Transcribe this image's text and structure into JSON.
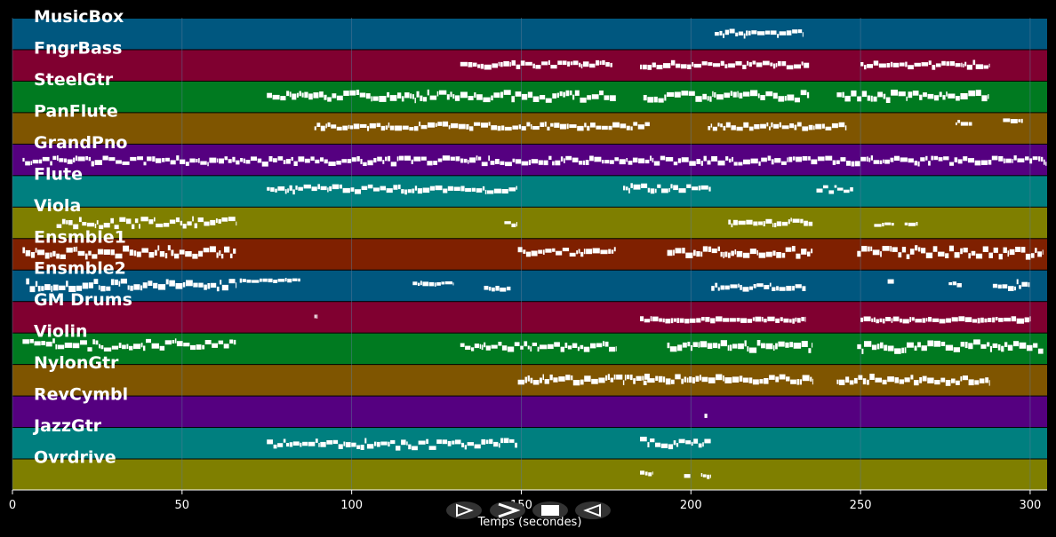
{
  "chart_data": {
    "type": "piano-roll",
    "xlabel": "Temps (secondes)",
    "xlim": [
      0,
      305
    ],
    "xticks": [
      0,
      50,
      100,
      150,
      200,
      250,
      300
    ],
    "tick_labels": [
      "0",
      "50",
      "100",
      "150",
      "200",
      "250",
      "300"
    ],
    "colors": {
      "blue": "#00577f",
      "crimson": "#800030",
      "green": "#007a20",
      "ochre": "#7f5500",
      "purple": "#550080",
      "teal": "#007f7f",
      "olive": "#7f7f00",
      "rust": "#7f2000",
      "note": "#ffffff",
      "grid": "#5a7a96"
    },
    "tracks": [
      {
        "name": "MusicBox",
        "color": "blue",
        "notes": [
          [
            207,
            233,
            0.5,
            0.18,
            1
          ]
        ]
      },
      {
        "name": "FngrBass",
        "color": "crimson",
        "notes": [
          [
            132,
            177,
            0.5,
            0.16,
            1
          ],
          [
            185,
            235,
            0.5,
            0.16,
            1
          ],
          [
            250,
            288,
            0.5,
            0.16,
            1
          ]
        ]
      },
      {
        "name": "SteelGtr",
        "color": "green",
        "notes": [
          [
            75,
            178,
            0.5,
            0.26,
            2
          ],
          [
            186,
            235,
            0.5,
            0.26,
            2
          ],
          [
            243,
            288,
            0.5,
            0.26,
            2
          ]
        ]
      },
      {
        "name": "PanFlute",
        "color": "ochre",
        "notes": [
          [
            89,
            188,
            0.45,
            0.16,
            1
          ],
          [
            205,
            246,
            0.45,
            0.16,
            1
          ],
          [
            278,
            283,
            0.35,
            0.14,
            0
          ],
          [
            292,
            298,
            0.25,
            0.14,
            0
          ]
        ]
      },
      {
        "name": "GrandPno",
        "color": "purple",
        "notes": [
          [
            3,
            305,
            0.55,
            0.2,
            1
          ]
        ]
      },
      {
        "name": "Flute",
        "color": "teal",
        "notes": [
          [
            75,
            149,
            0.45,
            0.18,
            1
          ],
          [
            180,
            206,
            0.42,
            0.18,
            1
          ],
          [
            237,
            248,
            0.45,
            0.18,
            0
          ]
        ]
      },
      {
        "name": "Viola",
        "color": "olive",
        "notes": [
          [
            13,
            66,
            0.5,
            0.3,
            1
          ],
          [
            145,
            149,
            0.55,
            0.1,
            0
          ],
          [
            211,
            236,
            0.5,
            0.2,
            1
          ],
          [
            254,
            260,
            0.55,
            0.1,
            0
          ],
          [
            263,
            267,
            0.55,
            0.1,
            0
          ]
        ]
      },
      {
        "name": "Ensmble1",
        "color": "rust",
        "notes": [
          [
            3,
            66,
            0.45,
            0.3,
            2
          ],
          [
            149,
            178,
            0.45,
            0.2,
            1
          ],
          [
            193,
            236,
            0.45,
            0.25,
            2
          ],
          [
            249,
            304,
            0.45,
            0.3,
            2
          ]
        ]
      },
      {
        "name": "Ensmble2",
        "color": "blue",
        "notes": [
          [
            4,
            66,
            0.5,
            0.3,
            2
          ],
          [
            67,
            85,
            0.35,
            0.06,
            0
          ],
          [
            118,
            130,
            0.45,
            0.06,
            0
          ],
          [
            139,
            147,
            0.6,
            0.1,
            1
          ],
          [
            206,
            234,
            0.55,
            0.15,
            1
          ],
          [
            258,
            260,
            0.35,
            0.1,
            0
          ],
          [
            276,
            280,
            0.45,
            0.1,
            0
          ],
          [
            289,
            300,
            0.5,
            0.25,
            1
          ]
        ]
      },
      {
        "name": "GM Drums",
        "color": "crimson",
        "notes": [
          [
            89,
            90,
            0.5,
            0.05,
            0
          ],
          [
            185,
            234,
            0.6,
            0.08,
            1
          ],
          [
            250,
            300,
            0.6,
            0.08,
            1
          ]
        ]
      },
      {
        "name": "Violin",
        "color": "green",
        "notes": [
          [
            3,
            66,
            0.4,
            0.3,
            1
          ],
          [
            132,
            178,
            0.45,
            0.2,
            1
          ],
          [
            193,
            236,
            0.45,
            0.25,
            2
          ],
          [
            249,
            304,
            0.45,
            0.3,
            2
          ]
        ]
      },
      {
        "name": "NylonGtr",
        "color": "ochre",
        "notes": [
          [
            149,
            188,
            0.5,
            0.2,
            2
          ],
          [
            186,
            236,
            0.5,
            0.2,
            2
          ],
          [
            243,
            288,
            0.5,
            0.2,
            2
          ]
        ]
      },
      {
        "name": "RevCymbl",
        "color": "purple",
        "notes": [
          [
            204,
            205,
            0.65,
            0.05,
            0
          ]
        ]
      },
      {
        "name": "JazzGtr",
        "color": "teal",
        "notes": [
          [
            75,
            149,
            0.55,
            0.25,
            1
          ],
          [
            185,
            206,
            0.5,
            0.25,
            1
          ]
        ]
      },
      {
        "name": "Ovrdrive",
        "color": "olive",
        "notes": [
          [
            185,
            189,
            0.5,
            0.1,
            0
          ],
          [
            198,
            200,
            0.55,
            0.1,
            0
          ],
          [
            203,
            206,
            0.55,
            0.1,
            0
          ]
        ]
      }
    ]
  },
  "controls": [
    {
      "id": "play",
      "icon": "play-outline-icon"
    },
    {
      "id": "forward",
      "icon": "chevron-right-icon"
    },
    {
      "id": "stop",
      "icon": "stop-square-icon"
    },
    {
      "id": "back",
      "icon": "triangle-left-icon"
    }
  ]
}
